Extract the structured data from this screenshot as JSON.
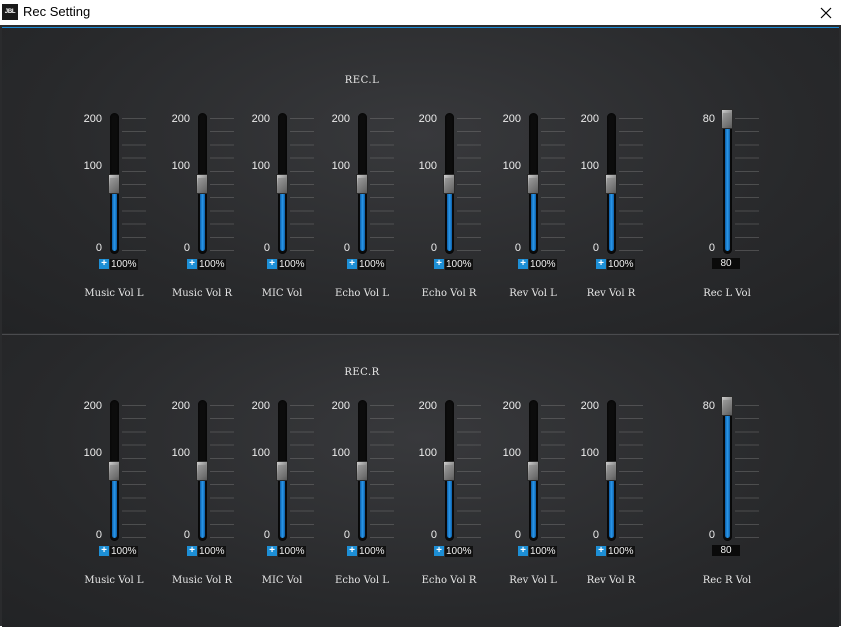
{
  "window": {
    "title": "Rec Setting",
    "icon_text": "JBL"
  },
  "scale_labels": {
    "max": "200",
    "mid": "100",
    "min": "0"
  },
  "master_scale": {
    "max": "80",
    "min": "0"
  },
  "sections": [
    {
      "title": "REC.L",
      "channels": [
        {
          "label": "Music Vol L",
          "percent": "100%",
          "level": 0.5
        },
        {
          "label": "Music Vol R",
          "percent": "100%",
          "level": 0.5
        },
        {
          "label": "MIC Vol",
          "percent": "100%",
          "level": 0.5
        },
        {
          "label": "Echo Vol L",
          "percent": "100%",
          "level": 0.5
        },
        {
          "label": "Echo Vol R",
          "percent": "100%",
          "level": 0.5
        },
        {
          "label": "Rev Vol L",
          "percent": "100%",
          "level": 0.5
        },
        {
          "label": "Rev Vol R",
          "percent": "100%",
          "level": 0.5
        }
      ],
      "master": {
        "label": "Rec L Vol",
        "value": "80",
        "level": 1.0
      }
    },
    {
      "title": "REC.R",
      "channels": [
        {
          "label": "Music Vol L",
          "percent": "100%",
          "level": 0.5
        },
        {
          "label": "Music Vol R",
          "percent": "100%",
          "level": 0.5
        },
        {
          "label": "MIC Vol",
          "percent": "100%",
          "level": 0.5
        },
        {
          "label": "Echo Vol L",
          "percent": "100%",
          "level": 0.5
        },
        {
          "label": "Echo Vol R",
          "percent": "100%",
          "level": 0.5
        },
        {
          "label": "Rev Vol L",
          "percent": "100%",
          "level": 0.5
        },
        {
          "label": "Rev Vol R",
          "percent": "100%",
          "level": 0.5
        }
      ],
      "master": {
        "label": "Rec R Vol",
        "value": "80",
        "level": 1.0
      }
    }
  ],
  "icons": {
    "close": "close-icon",
    "plus": "plus-icon"
  },
  "colors": {
    "accent": "#1d8fd6",
    "panel": "#2c2d30",
    "fill": "#2a98ea"
  }
}
